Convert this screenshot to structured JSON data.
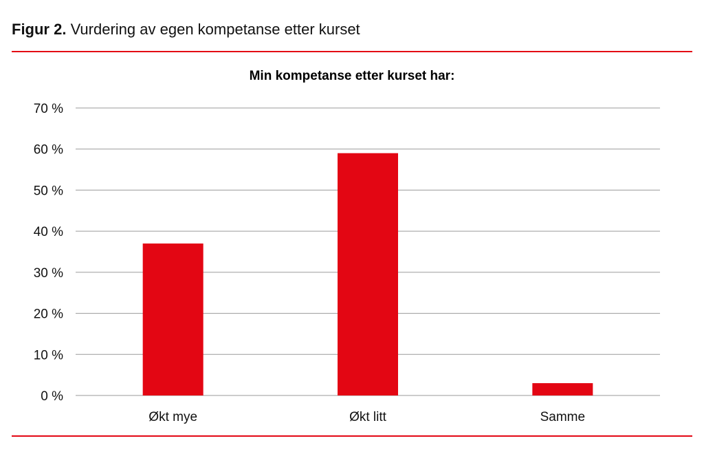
{
  "figure": {
    "label": "Figur 2.",
    "caption": "Vurdering av egen kompetanse etter kurset"
  },
  "colors": {
    "bar": "#e30613",
    "rule": "#e30613",
    "grid": "#9a9a9a"
  },
  "chart_data": {
    "type": "bar",
    "title": "Min kompetanse etter kurset har:",
    "categories": [
      "Økt mye",
      "Økt litt",
      "Samme"
    ],
    "values": [
      37,
      59,
      3
    ],
    "unit": "%",
    "ylim": [
      0,
      70
    ],
    "yticks": [
      0,
      10,
      20,
      30,
      40,
      50,
      60,
      70
    ],
    "ytick_labels": [
      "0 %",
      "10 %",
      "20 %",
      "30 %",
      "40 %",
      "50 %",
      "60 %",
      "70 %"
    ],
    "grid": true,
    "legend": "none"
  }
}
